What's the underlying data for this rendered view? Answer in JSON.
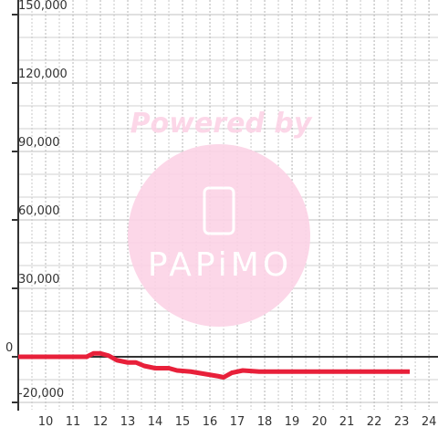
{
  "chart_data": {
    "type": "line",
    "watermark": {
      "top": "Powered by",
      "bottom": "PAPiMO"
    },
    "x": [
      9.0,
      11.5,
      11.75,
      12.0,
      12.3,
      12.6,
      13.0,
      13.3,
      13.6,
      14.0,
      14.5,
      14.8,
      15.3,
      15.8,
      16.3,
      16.5,
      16.8,
      17.2,
      17.8,
      18.5,
      23.3
    ],
    "series": [
      {
        "color": "#e8203a",
        "values": [
          0,
          0,
          1500,
          1500,
          500,
          -1500,
          -2500,
          -2500,
          -4000,
          -5000,
          -5000,
          -6000,
          -6500,
          -7500,
          -8500,
          -9000,
          -7000,
          -6000,
          -6500,
          -6500,
          -6500
        ]
      }
    ],
    "xlim": [
      9.0,
      24.33
    ],
    "xticks": [
      10,
      11,
      12,
      13,
      14,
      15,
      16,
      17,
      18,
      19,
      20,
      21,
      22,
      23,
      24
    ],
    "ylim": [
      -20000,
      150000
    ],
    "yticks": [
      {
        "value": -20000,
        "label": "-20,000"
      },
      0,
      {
        "value": 30000,
        "label": "30,000"
      },
      {
        "value": 60000,
        "label": "60,000"
      },
      {
        "value": 90000,
        "label": "90,000"
      },
      {
        "value": 120000,
        "label": "120,000"
      },
      {
        "value": 150000,
        "label": "150,000"
      }
    ],
    "grid": true
  }
}
